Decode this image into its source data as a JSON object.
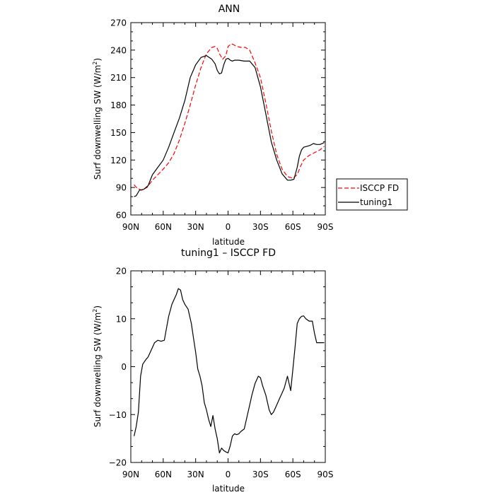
{
  "chart_data": [
    {
      "type": "line",
      "title": "ANN",
      "xlabel": "latitude",
      "ylabel": "Surf downwelling SW (W/m²)",
      "ylabel_parts": {
        "main": "Surf downwelling SW (W/m",
        "sup": "2",
        "end": ")"
      },
      "xlim": [
        90,
        -90
      ],
      "ylim": [
        60,
        270
      ],
      "xticks": [
        90,
        60,
        30,
        0,
        -30,
        -60,
        -90
      ],
      "xtick_labels": [
        "90N",
        "60N",
        "30N",
        "0",
        "30S",
        "60S",
        "90S"
      ],
      "yticks": [
        60,
        90,
        120,
        150,
        180,
        210,
        240,
        270
      ],
      "ytick_labels": [
        "60",
        "90",
        "120",
        "150",
        "180",
        "210",
        "240",
        "270"
      ],
      "legend": "right, outside",
      "series": [
        {
          "name": "ISCCP FD",
          "color": "#ff0000",
          "dash": "dashed",
          "x": [
            87,
            84,
            80,
            75,
            70,
            65,
            60,
            55,
            50,
            45,
            40,
            35,
            30,
            25,
            20,
            15,
            12,
            10,
            8,
            5,
            2,
            0,
            -3,
            -5,
            -8,
            -12,
            -16,
            -20,
            -25,
            -30,
            -35,
            -40,
            -45,
            -50,
            -55,
            -60,
            -64,
            -67,
            -70,
            -75,
            -80,
            -85,
            -89
          ],
          "y": [
            93,
            89,
            87,
            90,
            98,
            104,
            110,
            117,
            127,
            142,
            160,
            180,
            202,
            221,
            236,
            243,
            244,
            242,
            236,
            230,
            234,
            244,
            247,
            246,
            244,
            243,
            243,
            240,
            226,
            210,
            182,
            152,
            126,
            110,
            102,
            100,
            104,
            113,
            120,
            125,
            128,
            131,
            135
          ]
        },
        {
          "name": "tuning1",
          "color": "#000000",
          "dash": "solid",
          "x": [
            87,
            85,
            82,
            78,
            74,
            70,
            65,
            60,
            55,
            50,
            45,
            40,
            35,
            30,
            25,
            20,
            15,
            12,
            10,
            8,
            6,
            4,
            2,
            0,
            -2,
            -4,
            -6,
            -8,
            -10,
            -15,
            -20,
            -25,
            -30,
            -35,
            -40,
            -45,
            -50,
            -55,
            -58,
            -61,
            -64,
            -66,
            -68,
            -70,
            -73,
            -76,
            -79,
            -82,
            -85,
            -89
          ],
          "y": [
            80,
            81,
            87,
            88,
            92,
            104,
            112,
            120,
            134,
            150,
            166,
            185,
            210,
            224,
            232,
            234,
            230,
            225,
            218,
            214,
            215,
            224,
            230,
            231,
            229,
            228,
            229,
            229,
            229,
            228,
            228,
            221,
            200,
            170,
            140,
            120,
            105,
            98,
            98,
            99,
            112,
            124,
            131,
            134,
            135,
            136,
            138,
            137,
            137,
            139
          ]
        }
      ]
    },
    {
      "type": "line",
      "title": "tuning1 – ISCCP FD",
      "xlabel": "latitude",
      "ylabel": "Surf downwelling SW (W/m²)",
      "ylabel_parts": {
        "main": "Surf downwelling SW (W/m",
        "sup": "2",
        "end": ")"
      },
      "xlim": [
        90,
        -90
      ],
      "ylim": [
        -20,
        20
      ],
      "xticks": [
        90,
        60,
        30,
        0,
        -30,
        -60,
        -90
      ],
      "xtick_labels": [
        "90N",
        "60N",
        "30N",
        "0",
        "30S",
        "60S",
        "90S"
      ],
      "yticks": [
        -20,
        -10,
        0,
        10,
        20
      ],
      "ytick_labels": [
        "−20",
        "−10",
        "0",
        "10",
        "20"
      ],
      "series": [
        {
          "color": "#000000",
          "dash": "solid",
          "x": [
            87,
            85,
            83,
            81,
            79,
            76,
            74,
            71,
            68,
            65,
            62,
            59,
            57,
            55,
            52,
            50,
            48,
            46,
            44,
            42,
            40,
            37,
            34,
            32,
            30,
            28,
            26,
            24,
            22,
            20,
            18,
            16,
            14,
            12,
            10,
            8,
            6,
            4,
            2,
            0,
            -2,
            -4,
            -6,
            -8,
            -10,
            -12,
            -15,
            -18,
            -20,
            -22,
            -25,
            -28,
            -30,
            -32,
            -35,
            -38,
            -40,
            -42,
            -45,
            -48,
            -50,
            -52,
            -55,
            -58,
            -60,
            -62,
            -64,
            -66,
            -68,
            -70,
            -72,
            -75,
            -78,
            -80,
            -82,
            -84,
            -86,
            -89
          ],
          "y": [
            -14.5,
            -12.5,
            -9.5,
            -2,
            0.5,
            1.5,
            2,
            3.5,
            5,
            5.5,
            5.3,
            5.5,
            8,
            10.5,
            13,
            14,
            15,
            16.3,
            16,
            14,
            13,
            12,
            9,
            6,
            3,
            -0.5,
            -2,
            -4,
            -7.5,
            -9,
            -11,
            -12.5,
            -10.2,
            -13,
            -15,
            -18,
            -17,
            -17.5,
            -17.8,
            -18,
            -16.5,
            -14.5,
            -14,
            -14.2,
            -14,
            -13.5,
            -13,
            -10,
            -8,
            -6,
            -3.5,
            -2,
            -2.3,
            -4,
            -6,
            -9,
            -10,
            -9.5,
            -8,
            -6.5,
            -5.5,
            -4.5,
            -2,
            -5,
            -0.5,
            4,
            9,
            10,
            10.5,
            10.6,
            10,
            9.5,
            9.5,
            7,
            5,
            5,
            5,
            5
          ]
        }
      ]
    }
  ]
}
